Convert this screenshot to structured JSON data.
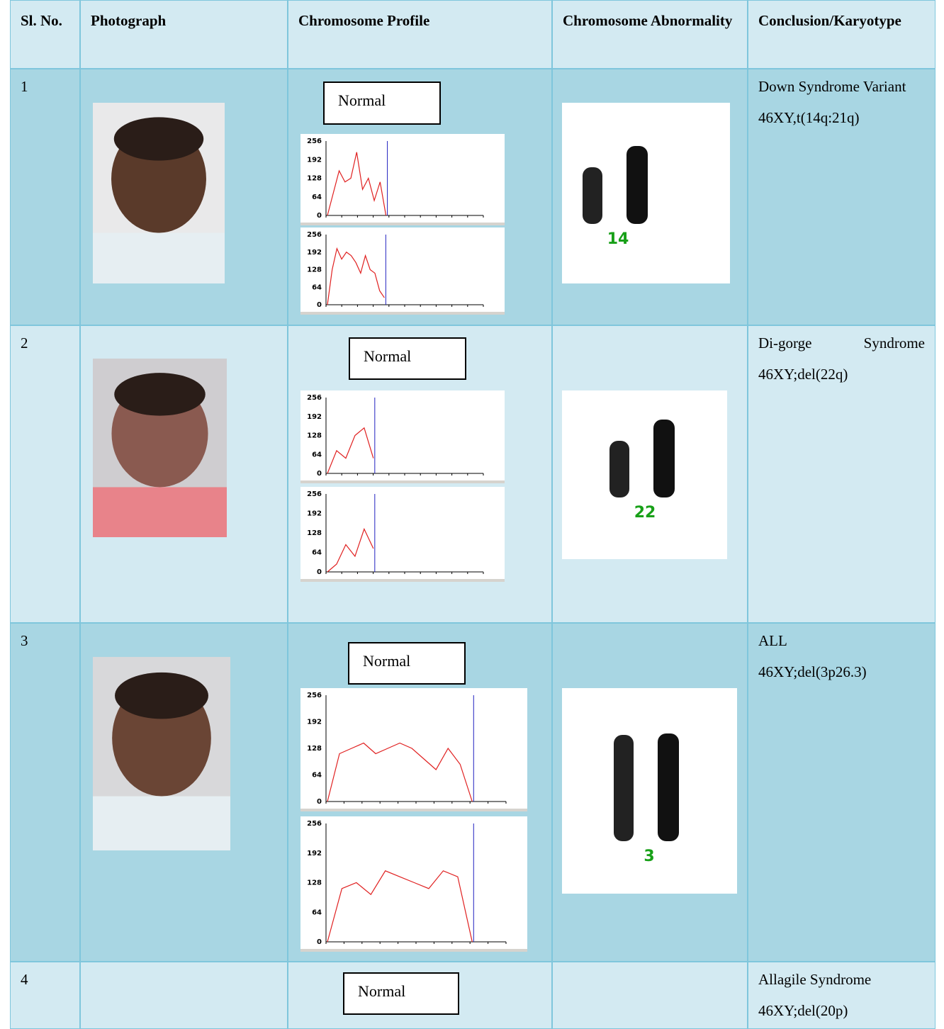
{
  "table": {
    "headers": [
      "Sl. No.",
      "Photograph",
      "Chromosome Profile",
      "Chromosome Abnormality",
      "Conclusion/Karyotype"
    ],
    "rows": [
      {
        "number": "1",
        "profile_label": "Normal",
        "profile_ticks": [
          "256",
          "192",
          "128",
          "64",
          "0"
        ],
        "chromosome_label": "14",
        "conclusion": [
          "Down Syndrome Variant",
          "46XY,t(14q:21q)"
        ]
      },
      {
        "number": "2",
        "profile_label": "Normal",
        "profile_ticks": [
          "256",
          "192",
          "128",
          "64",
          "0"
        ],
        "chromosome_label": "22",
        "conclusion": [
          "Di-gorge Syndrome 46XY;del(22q)"
        ]
      },
      {
        "number": "3",
        "profile_label": "Normal",
        "profile_ticks": [
          "256",
          "192",
          "128",
          "64",
          "0"
        ],
        "chromosome_label": "3",
        "conclusion": [
          "ALL",
          "46XY;del(3p26.3)"
        ]
      },
      {
        "number": "4",
        "profile_label": "Normal",
        "conclusion": [
          "Allagile Syndrome",
          "46XY;del(20p)"
        ]
      }
    ]
  }
}
